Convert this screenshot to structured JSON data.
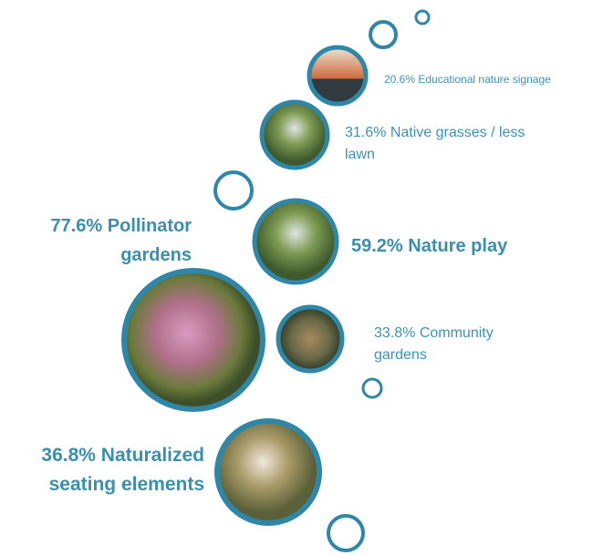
{
  "items": [
    {
      "label": "20.6% Educational nature signage"
    },
    {
      "label": "31.6% Native grasses / less lawn"
    },
    {
      "label": "77.6% Pollinator gardens"
    },
    {
      "label": "59.2% Nature play"
    },
    {
      "label": "33.8% Community gardens"
    },
    {
      "label": "36.8% Naturalized seating elements"
    }
  ]
}
